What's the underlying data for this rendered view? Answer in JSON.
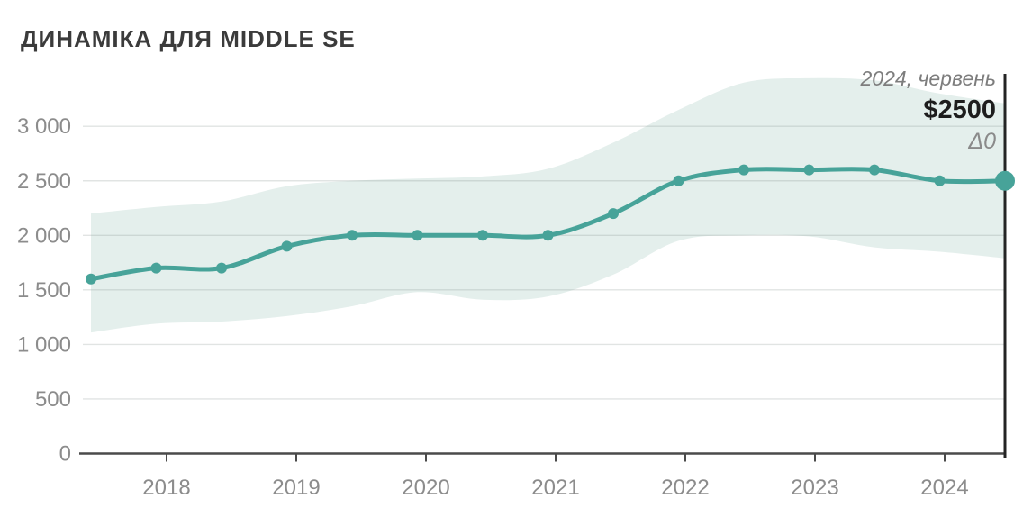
{
  "title": "ДИНАМІКА ДЛЯ MIDDLE SE",
  "annotation": {
    "period": "2024, червень",
    "value": "$2500",
    "delta": "Δ0"
  },
  "chart_data": {
    "type": "line",
    "title": "ДИНАМІКА ДЛЯ MIDDLE SE",
    "x": [
      "2017-06",
      "2017-12",
      "2018-06",
      "2018-12",
      "2019-06",
      "2019-12",
      "2020-06",
      "2020-12",
      "2021-06",
      "2021-12",
      "2022-06",
      "2022-12",
      "2023-06",
      "2023-12",
      "2024-06"
    ],
    "series": [
      {
        "name": "median-salary-usd",
        "values": [
          1600,
          1700,
          1700,
          1900,
          2000,
          2000,
          2000,
          2000,
          2200,
          2500,
          2600,
          2600,
          2600,
          2500,
          2500
        ]
      },
      {
        "name": "range-upper",
        "values": [
          2200,
          2260,
          2310,
          2450,
          2500,
          2520,
          2540,
          2610,
          2850,
          3150,
          3400,
          3440,
          3420,
          3300,
          3210
        ]
      },
      {
        "name": "range-lower",
        "values": [
          1110,
          1190,
          1210,
          1260,
          1350,
          1480,
          1410,
          1440,
          1640,
          1950,
          2000,
          1990,
          1890,
          1850,
          1790
        ]
      }
    ],
    "x_tick_labels": [
      "2018",
      "2019",
      "2020",
      "2021",
      "2022",
      "2023",
      "2024"
    ],
    "y_ticks": [
      0,
      500,
      1000,
      1500,
      2000,
      2500,
      3000
    ],
    "y_tick_labels": [
      "0",
      "500",
      "1 000",
      "1 500",
      "2 000",
      "2 500",
      "3 000"
    ],
    "ylim": [
      0,
      3500
    ],
    "grid": true,
    "legend": false,
    "last_point_label": "$2500",
    "last_point_period": "2024, червень",
    "last_point_delta": "Δ0"
  },
  "colors": {
    "line": "#47a399",
    "band": "#e4efec",
    "gridline_rgba": "rgba(120,130,128,0.22)",
    "axis": "#4a4a4a",
    "marker_line": "#242424",
    "tick_label": "#8c8c8c",
    "title": "#3b3b3b",
    "annotation_muted": "#7d7d7d",
    "annotation_value": "#1d1d1d"
  }
}
